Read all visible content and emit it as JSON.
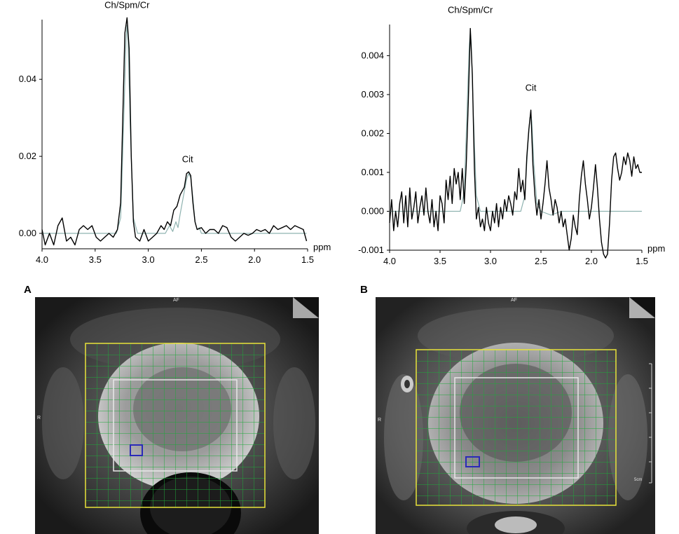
{
  "chart_data": [
    {
      "type": "line",
      "annotations": [
        {
          "text": "Ch/Spm/Cr",
          "x": 3.2,
          "y": 0.0585
        },
        {
          "text": "Cit",
          "x": 2.63,
          "y": 0.0185
        }
      ],
      "xunit": "ppm",
      "xlim": [
        4.0,
        1.5
      ],
      "xreversed": true,
      "ylim": [
        -0.004,
        0.0555
      ],
      "xticks": [
        "4.0",
        "3.5",
        "3.0",
        "2.5",
        "2.0",
        "1.5"
      ],
      "yticks": [
        "0.00",
        "0.02",
        "0.04"
      ],
      "ytick_values": [
        0.0,
        0.02,
        0.04
      ],
      "grid": false,
      "series": [
        {
          "role": "measured",
          "color": "#000000",
          "x": [
            4.0,
            3.97,
            3.93,
            3.89,
            3.85,
            3.81,
            3.77,
            3.73,
            3.69,
            3.65,
            3.61,
            3.57,
            3.53,
            3.49,
            3.45,
            3.41,
            3.37,
            3.33,
            3.29,
            3.26,
            3.24,
            3.22,
            3.2,
            3.18,
            3.16,
            3.14,
            3.12,
            3.08,
            3.04,
            3.0,
            2.96,
            2.92,
            2.88,
            2.85,
            2.82,
            2.79,
            2.76,
            2.73,
            2.7,
            2.68,
            2.66,
            2.64,
            2.62,
            2.6,
            2.58,
            2.56,
            2.54,
            2.5,
            2.46,
            2.42,
            2.38,
            2.34,
            2.3,
            2.26,
            2.22,
            2.18,
            2.14,
            2.1,
            2.06,
            2.02,
            1.98,
            1.94,
            1.9,
            1.86,
            1.82,
            1.78,
            1.74,
            1.7,
            1.66,
            1.62,
            1.58,
            1.54,
            1.51
          ],
          "y": [
            0.001,
            -0.003,
            0.0,
            -0.003,
            0.002,
            0.004,
            -0.002,
            -0.001,
            -0.003,
            0.001,
            0.002,
            0.001,
            0.002,
            -0.001,
            -0.002,
            -0.001,
            0.0,
            -0.001,
            0.001,
            0.008,
            0.03,
            0.052,
            0.056,
            0.048,
            0.02,
            0.003,
            -0.001,
            -0.002,
            0.001,
            -0.002,
            -0.001,
            0.0,
            0.002,
            0.001,
            0.003,
            0.002,
            0.006,
            0.007,
            0.01,
            0.011,
            0.012,
            0.0155,
            0.016,
            0.015,
            0.008,
            0.003,
            0.001,
            0.0015,
            0.0,
            0.001,
            0.001,
            0.0,
            0.002,
            0.0015,
            -0.001,
            -0.002,
            -0.001,
            0.0,
            -0.0005,
            0.0,
            0.001,
            0.0005,
            0.001,
            0.0,
            0.002,
            0.001,
            0.0015,
            0.002,
            0.001,
            0.002,
            0.0015,
            0.001,
            -0.002
          ]
        },
        {
          "role": "fit",
          "color": "#8fb3b0",
          "x": [
            4.0,
            3.4,
            3.3,
            3.26,
            3.23,
            3.21,
            3.2,
            3.19,
            3.17,
            3.14,
            3.1,
            3.0,
            2.84,
            2.8,
            2.77,
            2.74,
            2.72,
            2.7,
            2.68,
            2.66,
            2.64,
            2.62,
            2.6,
            2.58,
            2.56,
            2.54,
            2.52,
            2.5,
            2.4,
            2.0,
            1.51
          ],
          "y": [
            0.0,
            0.0,
            0.0,
            0.004,
            0.03,
            0.05,
            0.054,
            0.05,
            0.028,
            0.004,
            0.0,
            0.0,
            0.0,
            0.002,
            0.0005,
            0.003,
            0.0015,
            0.005,
            0.008,
            0.011,
            0.014,
            0.0155,
            0.0145,
            0.009,
            0.003,
            0.001,
            0.0015,
            0.0,
            0.0,
            0.0,
            0.0
          ]
        }
      ]
    },
    {
      "type": "line",
      "annotations": [
        {
          "text": "Ch/Spm/Cr",
          "x": 3.2,
          "y": 0.0051
        },
        {
          "text": "Cit",
          "x": 2.6,
          "y": 0.0031
        }
      ],
      "xunit": "ppm",
      "xlim": [
        4.0,
        1.5
      ],
      "xreversed": true,
      "ylim": [
        -0.001,
        0.0048
      ],
      "xticks": [
        "4.0",
        "3.5",
        "3.0",
        "2.5",
        "2.0",
        "1.5"
      ],
      "yticks": [
        "-0.001",
        "0.000",
        "0.001",
        "0.002",
        "0.003",
        "0.004"
      ],
      "ytick_values": [
        -0.001,
        0.0,
        0.001,
        0.002,
        0.003,
        0.004
      ],
      "grid": false,
      "series": [
        {
          "role": "measured",
          "color": "#000000",
          "x": [
            4.0,
            3.98,
            3.96,
            3.94,
            3.92,
            3.9,
            3.88,
            3.86,
            3.84,
            3.82,
            3.8,
            3.78,
            3.76,
            3.74,
            3.72,
            3.7,
            3.68,
            3.66,
            3.64,
            3.62,
            3.6,
            3.58,
            3.56,
            3.54,
            3.52,
            3.5,
            3.48,
            3.46,
            3.44,
            3.42,
            3.4,
            3.38,
            3.36,
            3.34,
            3.32,
            3.3,
            3.28,
            3.26,
            3.24,
            3.22,
            3.2,
            3.18,
            3.16,
            3.14,
            3.12,
            3.1,
            3.08,
            3.06,
            3.04,
            3.02,
            3.0,
            2.98,
            2.96,
            2.94,
            2.92,
            2.9,
            2.88,
            2.86,
            2.84,
            2.82,
            2.8,
            2.78,
            2.76,
            2.74,
            2.72,
            2.7,
            2.68,
            2.66,
            2.64,
            2.62,
            2.6,
            2.58,
            2.56,
            2.54,
            2.52,
            2.5,
            2.48,
            2.46,
            2.44,
            2.42,
            2.4,
            2.38,
            2.36,
            2.34,
            2.32,
            2.3,
            2.28,
            2.26,
            2.24,
            2.22,
            2.2,
            2.18,
            2.16,
            2.14,
            2.12,
            2.1,
            2.08,
            2.06,
            2.04,
            2.02,
            2.0,
            1.98,
            1.96,
            1.94,
            1.92,
            1.9,
            1.88,
            1.86,
            1.84,
            1.82,
            1.8,
            1.78,
            1.76,
            1.74,
            1.72,
            1.7,
            1.68,
            1.66,
            1.64,
            1.62,
            1.6,
            1.58,
            1.56,
            1.54,
            1.52,
            1.5
          ],
          "y": [
            -0.0003,
            0.0003,
            -0.0005,
            0.0,
            -0.0004,
            0.0002,
            0.0005,
            -0.0003,
            0.0004,
            -0.0004,
            0.0006,
            -0.0002,
            0.0001,
            0.0005,
            -0.0003,
            0.0001,
            0.0004,
            -0.0001,
            0.0006,
            0.0,
            -0.0003,
            0.0003,
            -0.0004,
            0.0,
            -0.0005,
            0.0004,
            0.0002,
            -0.0003,
            0.0008,
            0.0003,
            0.0009,
            0.0002,
            0.0011,
            0.0007,
            0.001,
            0.0003,
            0.0011,
            0.0002,
            0.0012,
            0.0028,
            0.0047,
            0.0035,
            0.0011,
            -0.0002,
            0.0001,
            -0.0004,
            -0.0002,
            -0.0005,
            0.0001,
            -0.0003,
            -0.0005,
            0.0,
            -0.0003,
            0.0002,
            -0.0004,
            0.0001,
            -0.0002,
            0.0003,
            0.0,
            0.0004,
            0.0002,
            -0.0001,
            0.0005,
            0.0003,
            0.0011,
            0.0005,
            0.0008,
            0.0003,
            0.0014,
            0.0021,
            0.0026,
            0.0012,
            0.0004,
            -0.0001,
            0.0003,
            -0.0002,
            0.0002,
            0.0007,
            0.0013,
            0.0006,
            0.0003,
            -0.0001,
            0.0003,
            0.0001,
            -0.0003,
            0.0,
            -0.0004,
            -0.0002,
            -0.0006,
            -0.001,
            -0.0007,
            -0.0001,
            -0.0004,
            -0.0006,
            0.0003,
            0.0009,
            0.0013,
            0.0007,
            0.0003,
            -0.0002,
            0.0001,
            0.0006,
            0.0012,
            0.0006,
            -0.0002,
            -0.0008,
            -0.0011,
            -0.0012,
            -0.0011,
            -0.0003,
            0.0008,
            0.0014,
            0.0015,
            0.0011,
            0.0008,
            0.001,
            0.0014,
            0.0012,
            0.0015,
            0.0013,
            0.0009,
            0.0014,
            0.0011,
            0.0012,
            0.001,
            0.001
          ]
        },
        {
          "role": "fit",
          "color": "#8fb3b0",
          "x": [
            4.0,
            3.3,
            3.26,
            3.23,
            3.21,
            3.2,
            3.19,
            3.17,
            3.14,
            3.1,
            2.7,
            2.66,
            2.63,
            2.61,
            2.6,
            2.59,
            2.57,
            2.54,
            2.5,
            2.4,
            2.3,
            1.5
          ],
          "y": [
            0.0,
            0.0,
            0.0005,
            0.0028,
            0.0043,
            0.0046,
            0.0043,
            0.0025,
            0.0004,
            0.0,
            0.0,
            0.0004,
            0.0017,
            0.0024,
            0.0025,
            0.0023,
            0.0012,
            0.0002,
            0.0,
            -0.0001,
            0.0,
            0.0
          ]
        }
      ]
    }
  ],
  "panels": {
    "a": {
      "letter": "A",
      "orientation_top": "AF",
      "orientation_side": "R"
    },
    "b": {
      "letter": "B",
      "orientation_top": "AF",
      "orientation_side": "R",
      "scale_label": "5cm"
    }
  },
  "colors": {
    "voi_box": "#e8e23a",
    "grid_lines": "#1fa83a",
    "prostate_box": "#e8e8e8",
    "selected_voxel": "#2a2ab8"
  }
}
